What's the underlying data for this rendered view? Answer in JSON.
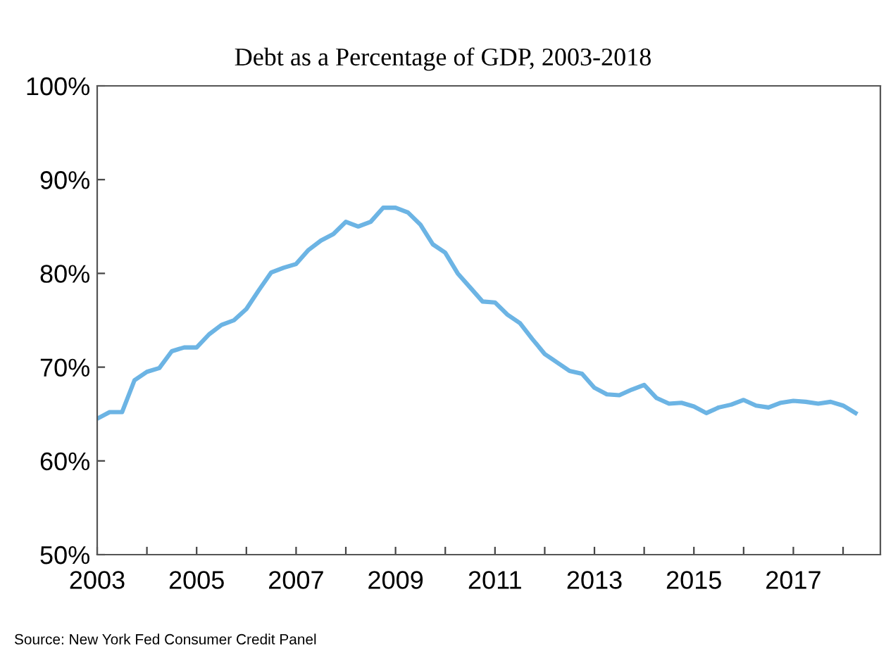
{
  "chart_data": {
    "type": "line",
    "title": "Debt as a Percentage of GDP, 2003-2018",
    "x": [
      2003.0,
      2003.25,
      2003.5,
      2003.75,
      2004.0,
      2004.25,
      2004.5,
      2004.75,
      2005.0,
      2005.25,
      2005.5,
      2005.75,
      2006.0,
      2006.25,
      2006.5,
      2006.75,
      2007.0,
      2007.25,
      2007.5,
      2007.75,
      2008.0,
      2008.25,
      2008.5,
      2008.75,
      2009.0,
      2009.25,
      2009.5,
      2009.75,
      2010.0,
      2010.25,
      2010.5,
      2010.75,
      2011.0,
      2011.25,
      2011.5,
      2011.75,
      2012.0,
      2012.25,
      2012.5,
      2012.75,
      2013.0,
      2013.25,
      2013.5,
      2013.75,
      2014.0,
      2014.25,
      2014.5,
      2014.75,
      2015.0,
      2015.25,
      2015.5,
      2015.75,
      2016.0,
      2016.25,
      2016.5,
      2016.75,
      2017.0,
      2017.25,
      2017.5,
      2017.75,
      2018.0,
      2018.25
    ],
    "series": [
      {
        "color": "#6cb4e4",
        "values": [
          64.5,
          65.2,
          65.2,
          68.6,
          69.5,
          69.9,
          71.7,
          72.1,
          72.1,
          73.5,
          74.5,
          75.0,
          76.2,
          78.2,
          80.1,
          80.6,
          81.0,
          82.5,
          83.5,
          84.2,
          85.5,
          85.0,
          85.5,
          87.0,
          87.0,
          86.5,
          85.2,
          83.1,
          82.2,
          80.0,
          78.5,
          77.0,
          76.9,
          75.6,
          74.7,
          73.0,
          71.4,
          70.5,
          69.6,
          69.3,
          67.8,
          67.1,
          67.0,
          67.6,
          68.1,
          66.7,
          66.1,
          66.2,
          65.8,
          65.1,
          65.7,
          66.0,
          66.5,
          65.9,
          65.7,
          66.2,
          66.4,
          66.3,
          66.1,
          66.3,
          65.9,
          65.1
        ]
      }
    ],
    "xlim": [
      2003,
      2018.75
    ],
    "xticks": [
      2003,
      {
        "value": 2004,
        "label": null
      },
      2005,
      {
        "value": 2006,
        "label": null
      },
      2007,
      {
        "value": 2008,
        "label": null
      },
      2009,
      {
        "value": 2010,
        "label": null
      },
      2011,
      {
        "value": 2012,
        "label": null
      },
      2013,
      {
        "value": 2014,
        "label": null
      },
      2015,
      {
        "value": 2016,
        "label": null
      },
      2017,
      {
        "value": 2018,
        "label": null
      }
    ],
    "ylim": [
      50,
      100
    ],
    "yticks": [
      {
        "value": 50,
        "label": "50%"
      },
      {
        "value": 60,
        "label": "60%"
      },
      {
        "value": 70,
        "label": "70%"
      },
      {
        "value": 80,
        "label": "80%"
      },
      {
        "value": 90,
        "label": "90%"
      },
      {
        "value": 100,
        "label": "100%"
      }
    ],
    "grid": false,
    "legend": false,
    "marker": "none",
    "line_style": "solid",
    "annotations": [
      "Source: New York Fed Consumer Credit Panel"
    ]
  }
}
